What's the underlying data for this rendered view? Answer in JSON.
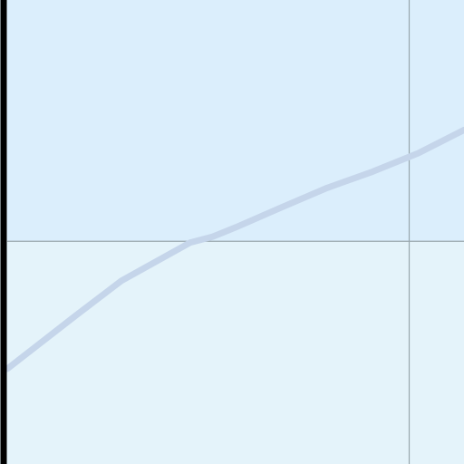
{
  "chart_data": {
    "type": "line",
    "title": "",
    "xlabel": "",
    "ylabel": "",
    "grid": true,
    "legend": "none",
    "xlim": [
      0,
      100
    ],
    "ylim": [
      0,
      100
    ],
    "x_gridlines": [
      88
    ],
    "y_gridlines": [
      48
    ],
    "series": [
      {
        "x": [
          0,
          15,
          25,
          40,
          45,
          50,
          60,
          70,
          80,
          90,
          100
        ],
        "y": [
          20.5,
          32,
          39.5,
          47.7,
          49,
          51,
          55.3,
          59.5,
          63,
          67,
          72
        ]
      }
    ]
  },
  "colors": {
    "background_upper": "#dbeefc",
    "background_lower": "#e4f3fa",
    "series_line": "#c5d5ea",
    "gridline": "#98a6ad",
    "axis": "#000000"
  }
}
